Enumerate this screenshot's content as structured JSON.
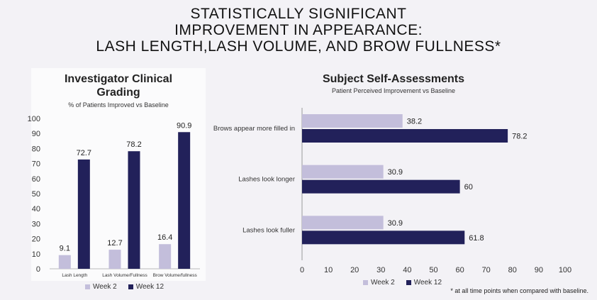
{
  "title_lines": [
    "STATISTICALLY SIGNIFICANT",
    "IMPROVEMENT IN APPEARANCE:",
    "LASH LENGTH,LASH VOLUME, AND BROW FULLNESS*"
  ],
  "footnote": "* at all time points when compared with baseline.",
  "colors": {
    "week2": "#c3bedb",
    "week12": "#22215a"
  },
  "chart_data": [
    {
      "type": "bar",
      "title": "Investigator Clinical Grading",
      "title_lines": [
        "Investigator Clinical",
        "Grading"
      ],
      "subtitle": "% of Patients Improved vs Baseline",
      "categories": [
        "Lash Length",
        "Lash Volume/Fullness",
        "Brow Volume/fullness"
      ],
      "series": [
        {
          "name": "Week 2",
          "values": [
            9.1,
            12.7,
            16.4
          ]
        },
        {
          "name": "Week 12",
          "values": [
            72.7,
            78.2,
            90.9
          ]
        }
      ],
      "value_labels": [
        [
          "9.1",
          "12.7",
          "16.4"
        ],
        [
          "72.7",
          "78.2",
          "90.9"
        ]
      ],
      "ylim": [
        0,
        100
      ],
      "yticks": [
        "0",
        "10",
        "20",
        "30",
        "40",
        "50",
        "60",
        "70",
        "80",
        "90",
        "100"
      ],
      "xlabel": "",
      "ylabel": "",
      "legend": "bottom"
    },
    {
      "type": "bar",
      "orientation": "horizontal",
      "title": "Subject Self-Assessments",
      "subtitle": "Patient Perceived Improvement vs Baseline",
      "categories": [
        "Brows appear more filled in",
        "Lashes look longer",
        "Lashes look fuller"
      ],
      "series": [
        {
          "name": "Week 2",
          "values": [
            38.2,
            30.9,
            30.9
          ]
        },
        {
          "name": "Week 12",
          "values": [
            78.2,
            60,
            61.8
          ]
        }
      ],
      "value_labels": [
        [
          "38.2",
          "30.9",
          "30.9"
        ],
        [
          "78.2",
          "60",
          "61.8"
        ]
      ],
      "xlim": [
        0,
        100
      ],
      "xticks": [
        "0",
        "10",
        "20",
        "30",
        "40",
        "50",
        "60",
        "70",
        "80",
        "90",
        "100"
      ],
      "xlabel": "",
      "ylabel": "",
      "legend": "bottom"
    }
  ]
}
